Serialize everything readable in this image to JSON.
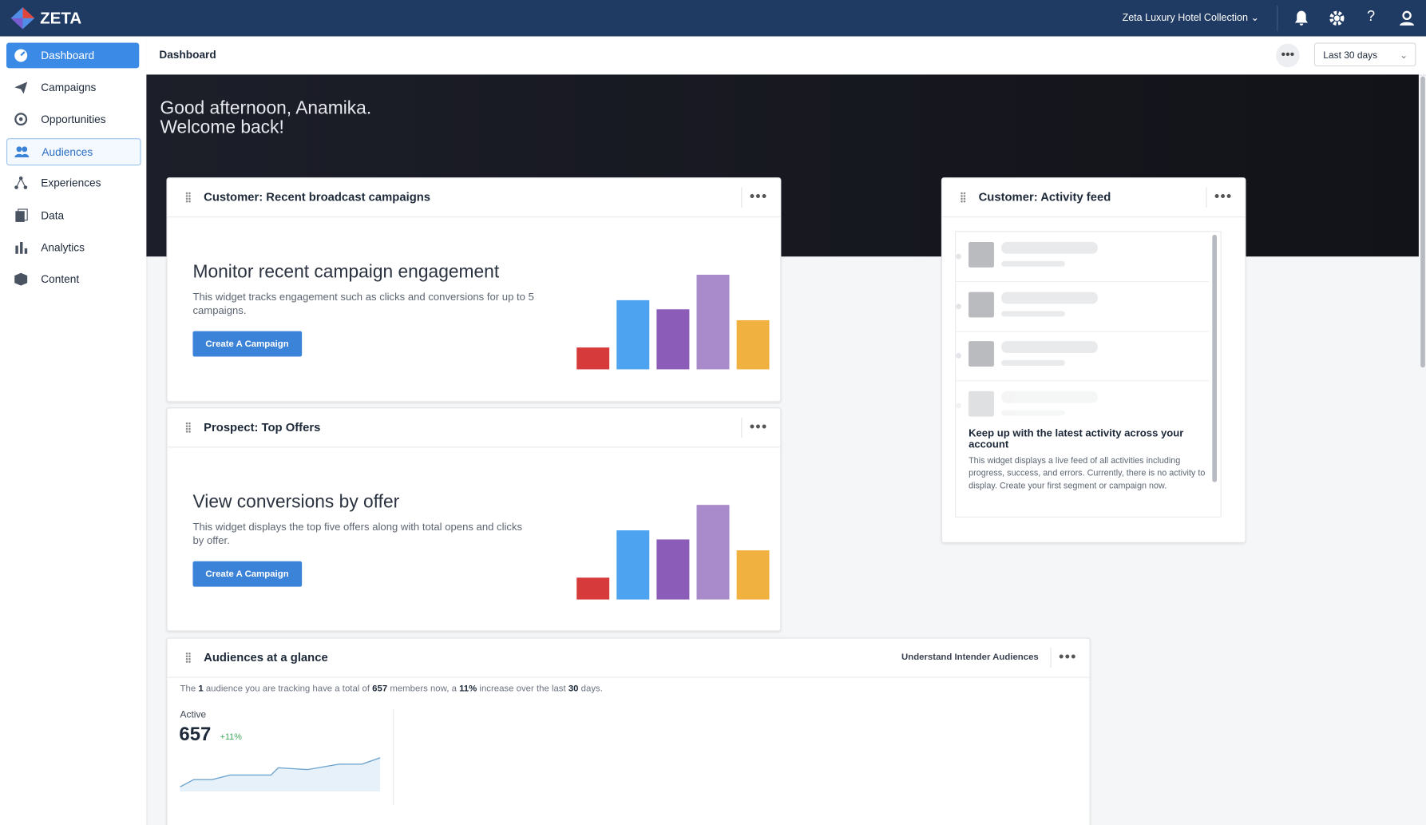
{
  "topbar": {
    "logo": "ZETA",
    "account": "Zeta Luxury Hotel Collection"
  },
  "sidebar": {
    "items": [
      "Dashboard",
      "Campaigns",
      "Opportunities",
      "Audiences",
      "Experiences",
      "Data",
      "Analytics",
      "Content"
    ]
  },
  "header": {
    "title": "Dashboard",
    "range": "Last 30 days"
  },
  "hero": {
    "line1": "Good afternoon, Anamika.",
    "line2": "Welcome back!"
  },
  "widgets": {
    "campaigns": {
      "title": "Customer: Recent broadcast campaigns",
      "heading": "Monitor recent campaign engagement",
      "text": "This widget tracks engagement such as clicks and conversions for up to 5 campaigns.",
      "button": "Create A Campaign"
    },
    "offers": {
      "title": "Prospect: Top Offers",
      "heading": "View conversions by offer",
      "text": "This widget displays the top five offers along with total opens and clicks by offer.",
      "button": "Create A Campaign"
    },
    "activity": {
      "title": "Customer: Activity feed",
      "heading": "Keep up with the latest activity across your account",
      "text": "This widget displays a live feed of all activities including progress, success, and errors. Currently, there is no activity to display. Create your first segment or campaign now."
    },
    "audiences": {
      "title": "Audiences at a glance",
      "link": "Understand Intender Audiences",
      "summary": [
        "The ",
        "1",
        " audience you are tracking have a total of ",
        "657",
        " members now, a ",
        "11%",
        " increase over the last ",
        "30",
        " days."
      ],
      "label": "Active",
      "count": "657",
      "change": "+11%"
    }
  }
}
